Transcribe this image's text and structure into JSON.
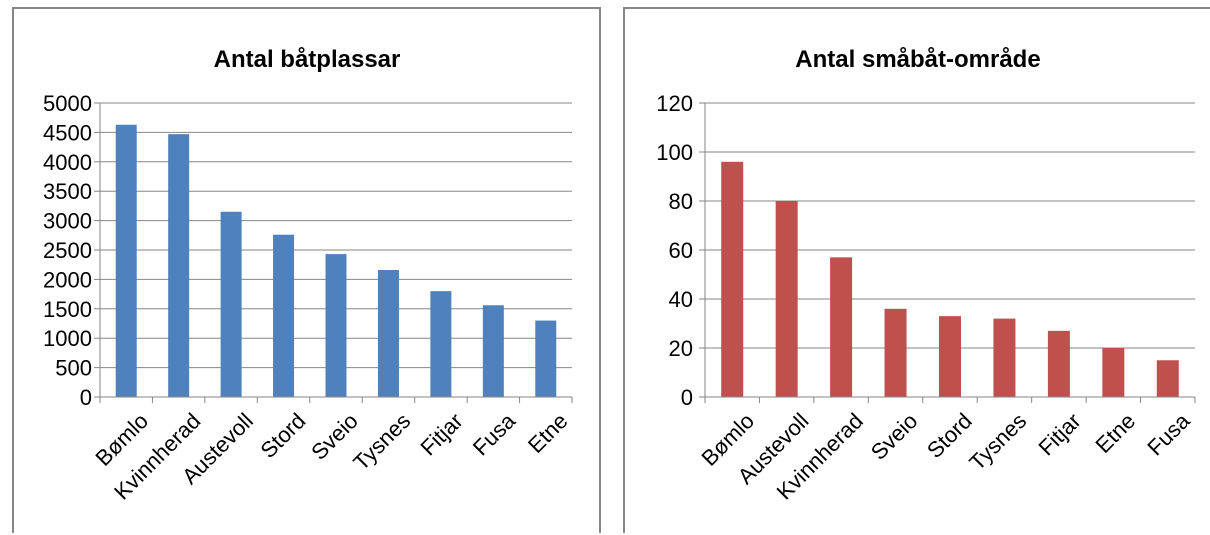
{
  "chart_data": [
    {
      "type": "bar",
      "title": "Antal båtplassar",
      "categories": [
        "Bømlo",
        "Kvinnherad",
        "Austevoll",
        "Stord",
        "Sveio",
        "Tysnes",
        "Fitjar",
        "Fusa",
        "Etne"
      ],
      "values": [
        4630,
        4470,
        3150,
        2760,
        2430,
        2160,
        1800,
        1560,
        1300
      ],
      "ylim": [
        0,
        5000
      ],
      "yticks": [
        0,
        500,
        1000,
        1500,
        2000,
        2500,
        3000,
        3500,
        4000,
        4500,
        5000
      ],
      "color": "#4f81bd",
      "grid": true,
      "legend": "none"
    },
    {
      "type": "bar",
      "title": "Antal småbåt-område",
      "categories": [
        "Bømlo",
        "Austevoll",
        "Kvinnherad",
        "Sveio",
        "Stord",
        "Tysnes",
        "Fitjar",
        "Etne",
        "Fusa"
      ],
      "values": [
        96,
        80,
        57,
        36,
        33,
        32,
        27,
        20,
        15
      ],
      "ylim": [
        0,
        120
      ],
      "yticks": [
        0,
        20,
        40,
        60,
        80,
        100,
        120
      ],
      "color": "#c0504d",
      "grid": true,
      "legend": "none"
    }
  ]
}
